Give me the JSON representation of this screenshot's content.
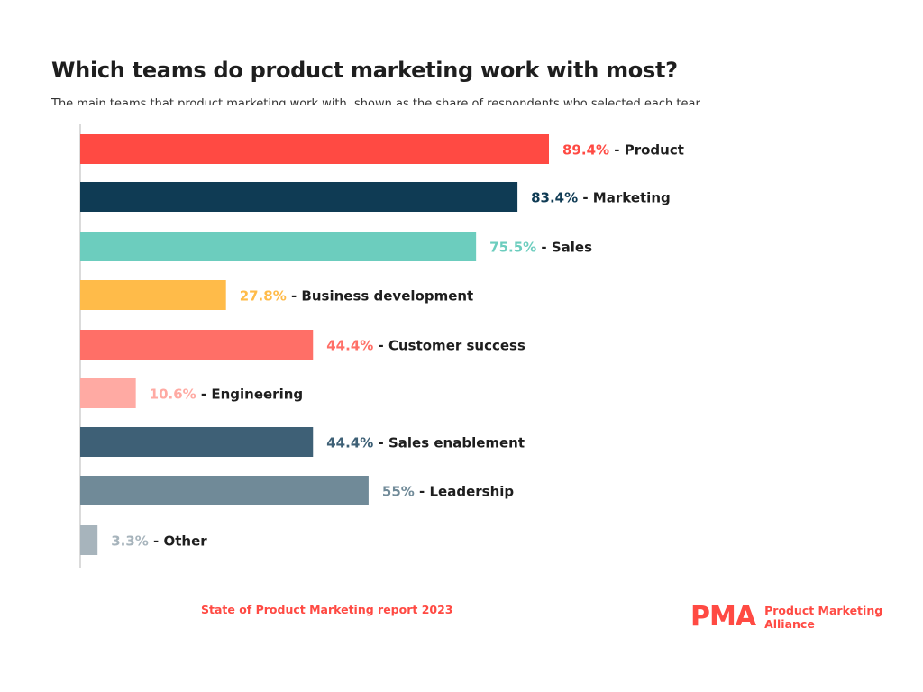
{
  "header": {
    "title": "Which teams do product marketing work with most?",
    "subtitle": "The main teams that product marketing work with, shown as the share of respondents who selected each team"
  },
  "chart_data": {
    "type": "bar",
    "orientation": "horizontal",
    "title": "Which teams do product marketing work with most?",
    "xlabel": "",
    "ylabel": "",
    "xlim": [
      0,
      100
    ],
    "grid": false,
    "unit": "%",
    "categories": [
      "Product",
      "Marketing",
      "Sales",
      "Business development",
      "Customer success",
      "Engineering",
      "Sales enablement",
      "Leadership",
      "Other"
    ],
    "values": [
      89.4,
      83.4,
      75.5,
      27.8,
      44.4,
      10.6,
      44.4,
      55,
      3.3
    ],
    "value_labels": [
      "89.4%",
      "83.4%",
      "75.5%",
      "27.8%",
      "44.4%",
      "10.6%",
      "44.4%",
      "55%",
      "3.3%"
    ],
    "colors": [
      "#ff4a43",
      "#0f3b54",
      "#6ccdbe",
      "#ffbb49",
      "#ff6f67",
      "#ffaaa3",
      "#3e6076",
      "#708a98",
      "#a7b4bc"
    ]
  },
  "footer": {
    "source": "State of Product Marketing report 2023",
    "logo_mark": "PMA",
    "logo_line1": "Product Marketing",
    "logo_line2": "Alliance"
  }
}
